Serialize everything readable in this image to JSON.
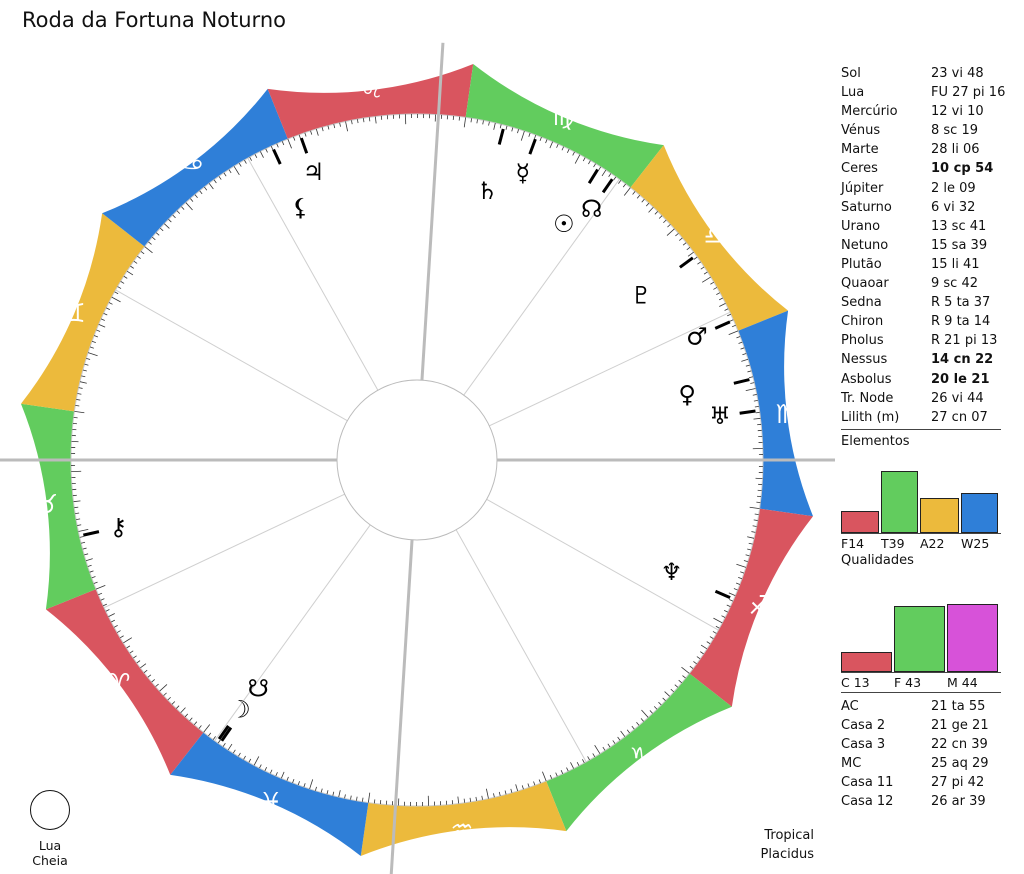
{
  "title": "Roda da Fortuna Noturno",
  "moon_phase": "Lua Cheia",
  "system": {
    "zodiac": "Tropical",
    "houses": "Placidus"
  },
  "signs": [
    {
      "name": "Aries",
      "glyph": "♈",
      "color": "#d9555f"
    },
    {
      "name": "Taurus",
      "glyph": "♉",
      "color": "#62cc5e"
    },
    {
      "name": "Gemini",
      "glyph": "♊",
      "color": "#ecba3c"
    },
    {
      "name": "Cancer",
      "glyph": "♋",
      "color": "#2f7fd8"
    },
    {
      "name": "Leo",
      "glyph": "♌",
      "color": "#d9555f"
    },
    {
      "name": "Virgo",
      "glyph": "♍",
      "color": "#62cc5e"
    },
    {
      "name": "Libra",
      "glyph": "♎",
      "color": "#ecba3c"
    },
    {
      "name": "Scorpio",
      "glyph": "♏",
      "color": "#2f7fd8"
    },
    {
      "name": "Sagittarius",
      "glyph": "♐",
      "color": "#d9555f"
    },
    {
      "name": "Capricorn",
      "glyph": "♑",
      "color": "#62cc5e"
    },
    {
      "name": "Aquarius",
      "glyph": "♒",
      "color": "#ecba3c"
    },
    {
      "name": "Pisces",
      "glyph": "♓",
      "color": "#2f7fd8"
    }
  ],
  "planets": [
    {
      "name": "Sol",
      "value": "23 vi 48",
      "glyph": "☉",
      "bold": false
    },
    {
      "name": "Lua",
      "value": "FU 27 pi 16",
      "glyph": "☽",
      "bold": false
    },
    {
      "name": "Mercúrio",
      "value": "12 vi 10",
      "glyph": "☿",
      "bold": false
    },
    {
      "name": "Vénus",
      "value": "8 sc 19",
      "glyph": "♀",
      "bold": false
    },
    {
      "name": "Marte",
      "value": "28 li 06",
      "glyph": "♂",
      "bold": false
    },
    {
      "name": "Ceres",
      "value": "10 cp 54",
      "glyph": "⚳",
      "bold": true
    },
    {
      "name": "Júpiter",
      "value": "2 le 09",
      "glyph": "♃",
      "bold": false
    },
    {
      "name": "Saturno",
      "value": "6 vi 32",
      "glyph": "♄",
      "bold": false
    },
    {
      "name": "Urano",
      "value": "13 sc 41",
      "glyph": "♅",
      "bold": false
    },
    {
      "name": "Netuno",
      "value": "15 sa 39",
      "glyph": "♆",
      "bold": false
    },
    {
      "name": "Plutão",
      "value": "15 li 41",
      "glyph": "♇",
      "bold": false
    },
    {
      "name": "Quaoar",
      "value": "9 sc 42",
      "glyph": "",
      "bold": false
    },
    {
      "name": "Sedna",
      "value": "R 5 ta 37",
      "glyph": "",
      "bold": false
    },
    {
      "name": "Chiron",
      "value": "R 9 ta 14",
      "glyph": "⚷",
      "bold": false
    },
    {
      "name": "Pholus",
      "value": "R 21 pi 13",
      "glyph": "",
      "bold": false
    },
    {
      "name": "Nessus",
      "value": "14 cn 22",
      "glyph": "",
      "bold": true
    },
    {
      "name": "Asbolus",
      "value": "20 le 21",
      "glyph": "",
      "bold": true
    },
    {
      "name": "Tr. Node",
      "value": "26 vi 44",
      "glyph": "☊",
      "bold": false
    },
    {
      "name": "Lilith (m)",
      "value": "27 cn 07",
      "glyph": "⚸",
      "bold": false
    }
  ],
  "chart_glyphs": [
    {
      "name": "Lua",
      "glyph": "☽",
      "lon": 357.27
    },
    {
      "name": "South Node",
      "glyph": "☋",
      "lon": 356.73
    },
    {
      "name": "Chiron",
      "glyph": "⚷",
      "lon": 39.23
    },
    {
      "name": "Lilith",
      "glyph": "⚸",
      "lon": 117.12
    },
    {
      "name": "Júpiter",
      "glyph": "♃",
      "lon": 122.15
    },
    {
      "name": "Saturno",
      "glyph": "♄",
      "lon": 156.53
    },
    {
      "name": "Mercúrio",
      "glyph": "☿",
      "lon": 162.17
    },
    {
      "name": "Sol",
      "glyph": "☉",
      "lon": 173.8
    },
    {
      "name": "Tr. Node",
      "glyph": "☊",
      "lon": 176.73
    },
    {
      "name": "Plutão",
      "glyph": "♇",
      "lon": 195.68
    },
    {
      "name": "Marte",
      "glyph": "♂",
      "lon": 208.1
    },
    {
      "name": "Vénus",
      "glyph": "♀",
      "lon": 218.32
    },
    {
      "name": "Urano",
      "glyph": "♅",
      "lon": 223.68
    },
    {
      "name": "Netuno",
      "glyph": "♆",
      "lon": 255.65
    }
  ],
  "houses": [
    {
      "name": "AC",
      "value": "21 ta 55",
      "lon": 51.92
    },
    {
      "name": "Casa 2",
      "value": "21 ge 21",
      "lon": 81.35
    },
    {
      "name": "Casa 3",
      "value": "22 cn 39",
      "lon": 112.65
    },
    {
      "name": "MC",
      "value": "25 aq 29",
      "lon": 325.48
    },
    {
      "name": "Casa 11",
      "value": "27 pi 42",
      "lon": 357.7
    },
    {
      "name": "Casa 12",
      "value": "26 ar 39",
      "lon": 26.65
    }
  ],
  "elementos": {
    "title": "Elementos",
    "items": [
      {
        "label": "F14",
        "value": 14,
        "color": "#d9555f"
      },
      {
        "label": "T39",
        "value": 39,
        "color": "#62cc5e"
      },
      {
        "label": "A22",
        "value": 22,
        "color": "#ecba3c"
      },
      {
        "label": "W25",
        "value": 25,
        "color": "#2f7fd8"
      }
    ]
  },
  "qualidades": {
    "title": "Qualidades",
    "items": [
      {
        "label": "C 13",
        "value": 13,
        "color": "#d9555f"
      },
      {
        "label": "F 43",
        "value": 43,
        "color": "#62cc5e"
      },
      {
        "label": "M 44",
        "value": 44,
        "color": "#d752d9"
      }
    ]
  }
}
